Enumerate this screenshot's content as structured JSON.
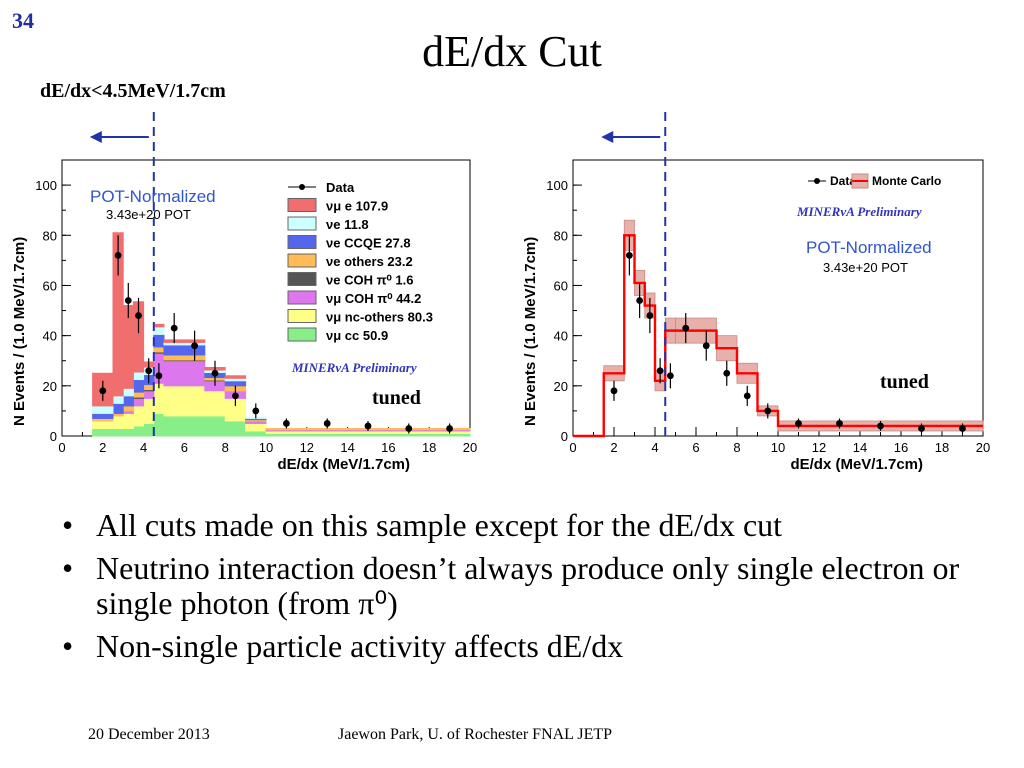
{
  "slide_number": "34",
  "title": "dE/dx Cut",
  "cut_label": "dE/dx<4.5MeV/1.7cm",
  "bullets": [
    "All cuts made on this sample except for the dE/dx cut",
    "Neutrino interaction doesn’t always produce only single electron or single photon (from π⁰)",
    "Non-single particle activity affects dE/dx"
  ],
  "footer": {
    "date": "20 December 2013",
    "author": "Jaewon Park, U. of Rochester  FNAL JETP"
  },
  "chart_data": [
    {
      "type": "bar",
      "stacked": true,
      "xlabel": "dE/dx (MeV/1.7cm)",
      "ylabel": "N Events / (1.0 MeV/1.7cm)",
      "xlim": [
        0,
        20
      ],
      "ylim": [
        0,
        110
      ],
      "x_ticks": [
        0,
        2,
        4,
        6,
        8,
        10,
        12,
        14,
        16,
        18,
        20
      ],
      "y_ticks": [
        0,
        20,
        40,
        60,
        80,
        100
      ],
      "cut_line_x": 4.5,
      "annotation_pot": "POT-Normalized",
      "annotation_pot_value": "3.43e+20 POT",
      "annotation_prelim": "MINERvA Preliminary",
      "annotation_tuned": "tuned",
      "legend_position": "top-right",
      "legend": [
        {
          "label": "Data",
          "marker": "point"
        },
        {
          "label": "νμ e   107.9",
          "color": "#f06e6e"
        },
        {
          "label": "νe 11.8",
          "color": "#ccffff"
        },
        {
          "label": "νe CCQE   27.8",
          "color": "#5566ee"
        },
        {
          "label": "νe others   23.2",
          "color": "#ffbb55"
        },
        {
          "label": "νe COH π⁰   1.6",
          "color": "#555555"
        },
        {
          "label": "νμ COH π⁰   44.2",
          "color": "#dd77ee"
        },
        {
          "label": "νμ nc-others   80.3",
          "color": "#ffff88"
        },
        {
          "label": "νμ cc   50.9",
          "color": "#88ee88"
        }
      ],
      "bin_edges": [
        1.5,
        2.5,
        3.0,
        3.5,
        4.0,
        4.5,
        5.0,
        7.0,
        8.0,
        9.0,
        10.0,
        20.0
      ],
      "series": [
        {
          "color": "#88ee88",
          "values": [
            3,
            3,
            3,
            4,
            5,
            9,
            8,
            8,
            6,
            2,
            1
          ]
        },
        {
          "color": "#ffff88",
          "values": [
            3,
            5,
            6,
            8,
            10,
            12,
            12,
            10,
            9,
            3,
            1
          ]
        },
        {
          "color": "#dd77ee",
          "values": [
            0,
            0,
            1,
            3,
            3,
            12,
            10,
            4,
            3,
            1,
            0.5
          ]
        },
        {
          "color": "#555555",
          "values": [
            0,
            0,
            0,
            0.5,
            0.5,
            0.5,
            0.3,
            0.3,
            0,
            0,
            0
          ]
        },
        {
          "color": "#ffbb55",
          "values": [
            1,
            1,
            2,
            2,
            2,
            2,
            2,
            1,
            2,
            0.5,
            0.5
          ]
        },
        {
          "color": "#5566ee",
          "values": [
            2,
            4,
            4,
            5,
            4,
            5,
            4,
            2,
            2,
            0.5,
            0
          ]
        },
        {
          "color": "#ccffff",
          "values": [
            3,
            3,
            3,
            3,
            3,
            3,
            1,
            1,
            1,
            0.5,
            0
          ]
        },
        {
          "color": "#f06e6e",
          "values": [
            13,
            65,
            33,
            28,
            2,
            1,
            1,
            1,
            1,
            0,
            0
          ]
        }
      ],
      "data_points": [
        {
          "x": 2.0,
          "y": 18,
          "err": 4
        },
        {
          "x": 2.75,
          "y": 72,
          "err": 8
        },
        {
          "x": 3.25,
          "y": 54,
          "err": 7
        },
        {
          "x": 3.75,
          "y": 48,
          "err": 7
        },
        {
          "x": 4.25,
          "y": 26,
          "err": 5
        },
        {
          "x": 4.75,
          "y": 24,
          "err": 5
        },
        {
          "x": 5.5,
          "y": 43,
          "err": 6
        },
        {
          "x": 6.5,
          "y": 36,
          "err": 6
        },
        {
          "x": 7.5,
          "y": 25,
          "err": 5
        },
        {
          "x": 8.5,
          "y": 16,
          "err": 4
        },
        {
          "x": 9.5,
          "y": 10,
          "err": 3
        },
        {
          "x": 11,
          "y": 5,
          "err": 2
        },
        {
          "x": 13,
          "y": 5,
          "err": 2
        },
        {
          "x": 15,
          "y": 4,
          "err": 2
        },
        {
          "x": 17,
          "y": 3,
          "err": 2
        },
        {
          "x": 19,
          "y": 3,
          "err": 2
        }
      ]
    },
    {
      "type": "line",
      "xlabel": "dE/dx (MeV/1.7cm)",
      "ylabel": "N Events / (1.0 MeV/1.7cm)",
      "xlim": [
        0,
        20
      ],
      "ylim": [
        0,
        110
      ],
      "x_ticks": [
        0,
        2,
        4,
        6,
        8,
        10,
        12,
        14,
        16,
        18,
        20
      ],
      "y_ticks": [
        0,
        20,
        40,
        60,
        80,
        100
      ],
      "cut_line_x": 4.5,
      "annotation_pot": "POT-Normalized",
      "annotation_pot_value": "3.43e+20 POT",
      "annotation_prelim": "MINERvA Preliminary",
      "annotation_tuned": "tuned",
      "legend_position": "top-right",
      "legend": [
        {
          "label": "Data",
          "marker": "point"
        },
        {
          "label": "Monte Carlo",
          "color": "#ff0000"
        }
      ],
      "mc_bin_edges": [
        0,
        1.5,
        2.5,
        3.0,
        3.5,
        4.0,
        4.5,
        5.0,
        7.0,
        8.0,
        9.0,
        10.0,
        20.0
      ],
      "mc_values": [
        0,
        25,
        80,
        61,
        52,
        22,
        42,
        42,
        35,
        25,
        10,
        4
      ],
      "mc_band": [
        0,
        3,
        6,
        5,
        5,
        4,
        5,
        5,
        5,
        4,
        2,
        2
      ],
      "data_points": [
        {
          "x": 2.0,
          "y": 18,
          "err": 4
        },
        {
          "x": 2.75,
          "y": 72,
          "err": 8
        },
        {
          "x": 3.25,
          "y": 54,
          "err": 7
        },
        {
          "x": 3.75,
          "y": 48,
          "err": 7
        },
        {
          "x": 4.25,
          "y": 26,
          "err": 5
        },
        {
          "x": 4.75,
          "y": 24,
          "err": 5
        },
        {
          "x": 5.5,
          "y": 43,
          "err": 6
        },
        {
          "x": 6.5,
          "y": 36,
          "err": 6
        },
        {
          "x": 7.5,
          "y": 25,
          "err": 5
        },
        {
          "x": 8.5,
          "y": 16,
          "err": 4
        },
        {
          "x": 9.5,
          "y": 10,
          "err": 3
        },
        {
          "x": 11,
          "y": 5,
          "err": 2
        },
        {
          "x": 13,
          "y": 5,
          "err": 2
        },
        {
          "x": 15,
          "y": 4,
          "err": 2
        },
        {
          "x": 17,
          "y": 3,
          "err": 2
        },
        {
          "x": 19,
          "y": 3,
          "err": 2
        }
      ]
    }
  ]
}
